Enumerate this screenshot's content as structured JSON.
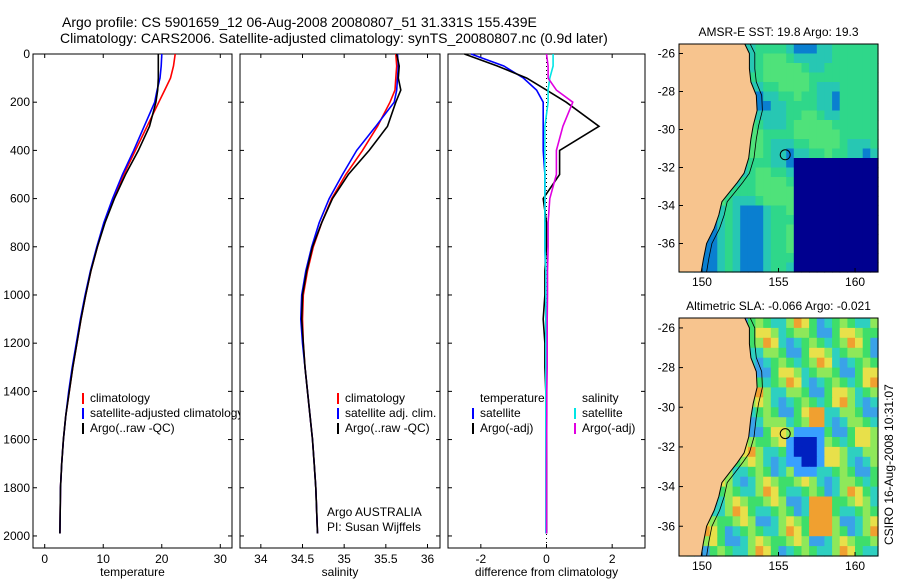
{
  "header": {
    "line1": "Argo profile: CS 5901659_12 06-Aug-2008 20080807_51 31.331S 155.439E",
    "line2": "Climatology: CARS2006. Satellite-adjusted climatology: synTS_20080807.nc (0.9d later)"
  },
  "side_label": "CSIRO 16-Aug-2008 10:31:07",
  "colors": {
    "red": "#ff0000",
    "blue": "#0000ff",
    "black": "#000000",
    "cyan": "#00e5e5",
    "magenta": "#e000e0",
    "land": "#f7c48e",
    "coast": "#000000"
  },
  "chart_data": [
    {
      "type": "line",
      "id": "temperature",
      "xlabel": "temperature",
      "ylabel": "",
      "xlim": [
        -2,
        32
      ],
      "ylim": [
        2050,
        0
      ],
      "xticks": [
        0,
        10,
        20,
        30
      ],
      "yticks": [
        0,
        200,
        400,
        600,
        800,
        1000,
        1200,
        1400,
        1600,
        1800,
        2000
      ],
      "legend": [
        "climatology",
        "satellite-adjusted climatology",
        "Argo(..raw -QC)"
      ],
      "series": [
        {
          "name": "climatology",
          "color": "red",
          "x": [
            22.3,
            22.0,
            21.5,
            20.5,
            19.5,
            17.5,
            15.5,
            13.5,
            11.8,
            10.2,
            9.0,
            7.9,
            7.0,
            6.2,
            5.5,
            4.8,
            4.2,
            3.6,
            3.2,
            2.9,
            2.7,
            2.6
          ],
          "y": [
            0,
            50,
            100,
            150,
            200,
            300,
            400,
            500,
            600,
            700,
            800,
            900,
            1000,
            1100,
            1200,
            1300,
            1400,
            1500,
            1600,
            1700,
            1800,
            1990
          ]
        },
        {
          "name": "satellite-adjusted climatology",
          "color": "blue",
          "x": [
            20.0,
            19.9,
            19.7,
            19.2,
            18.8,
            17.0,
            15.2,
            13.3,
            11.6,
            10.1,
            8.9,
            7.8,
            6.9,
            6.1,
            5.4,
            4.7,
            4.1,
            3.6,
            3.2,
            2.9,
            2.7,
            2.6
          ],
          "y": [
            0,
            50,
            100,
            150,
            200,
            300,
            400,
            500,
            600,
            700,
            800,
            900,
            1000,
            1100,
            1200,
            1300,
            1400,
            1500,
            1600,
            1700,
            1800,
            1990
          ]
        },
        {
          "name": "Argo(..raw -QC)",
          "color": "black",
          "x": [
            19.4,
            19.4,
            19.4,
            19.3,
            19.0,
            17.9,
            16.0,
            13.8,
            11.9,
            10.3,
            9.0,
            7.9,
            7.0,
            6.2,
            5.5,
            4.8,
            4.2,
            3.6,
            3.2,
            2.9,
            2.7,
            2.6
          ],
          "y": [
            0,
            50,
            100,
            150,
            200,
            300,
            400,
            500,
            600,
            700,
            800,
            900,
            1000,
            1100,
            1200,
            1300,
            1400,
            1500,
            1600,
            1700,
            1800,
            1990
          ]
        }
      ]
    },
    {
      "type": "line",
      "id": "salinity",
      "xlabel": "salinity",
      "ylabel": "",
      "xlim": [
        33.75,
        36.15
      ],
      "ylim": [
        2050,
        0
      ],
      "xticks": [
        34,
        34.5,
        35,
        35.5,
        36
      ],
      "yticks": [
        0,
        200,
        400,
        600,
        800,
        1000,
        1200,
        1400,
        1600,
        1800,
        2000
      ],
      "legend": [
        "climatology",
        "satellite adj. clim.",
        "Argo(..raw -QC)"
      ],
      "annotations": [
        "Argo AUSTRALIA",
        "PI: Susan Wijffels"
      ],
      "series": [
        {
          "name": "climatology",
          "color": "red",
          "x": [
            35.62,
            35.63,
            35.62,
            35.61,
            35.55,
            35.4,
            35.22,
            35.02,
            34.85,
            34.73,
            34.63,
            34.56,
            34.51,
            34.5,
            34.51,
            34.53,
            34.56,
            34.59,
            34.62,
            34.64,
            34.66,
            34.68
          ],
          "y": [
            0,
            50,
            100,
            150,
            200,
            300,
            400,
            500,
            600,
            700,
            800,
            900,
            1000,
            1100,
            1200,
            1300,
            1400,
            1500,
            1600,
            1700,
            1800,
            1990
          ]
        },
        {
          "name": "satellite adj. clim.",
          "color": "blue",
          "x": [
            35.64,
            35.65,
            35.64,
            35.63,
            35.6,
            35.38,
            35.15,
            34.98,
            34.82,
            34.7,
            34.61,
            34.54,
            34.49,
            34.48,
            34.5,
            34.53,
            34.56,
            34.59,
            34.62,
            34.64,
            34.66,
            34.68
          ],
          "y": [
            0,
            50,
            100,
            150,
            200,
            300,
            400,
            500,
            600,
            700,
            800,
            900,
            1000,
            1100,
            1200,
            1300,
            1400,
            1500,
            1600,
            1700,
            1800,
            1990
          ]
        },
        {
          "name": "Argo(..raw -QC)",
          "color": "black",
          "x": [
            35.63,
            35.66,
            35.65,
            35.68,
            35.62,
            35.52,
            35.3,
            35.05,
            34.86,
            34.73,
            34.62,
            34.55,
            34.5,
            34.49,
            34.51,
            34.53,
            34.56,
            34.59,
            34.62,
            34.64,
            34.66,
            34.68
          ],
          "y": [
            0,
            50,
            100,
            150,
            200,
            300,
            400,
            500,
            600,
            700,
            800,
            900,
            1000,
            1100,
            1200,
            1300,
            1400,
            1500,
            1600,
            1700,
            1800,
            1990
          ]
        }
      ]
    },
    {
      "type": "line",
      "id": "difference",
      "xlabel": "difference from climatology",
      "ylabel": "",
      "xlim": [
        -3,
        3
      ],
      "ylim": [
        2050,
        0
      ],
      "xticks": [
        -2,
        0,
        2
      ],
      "yticks": [
        0,
        200,
        400,
        600,
        800,
        1000,
        1200,
        1400,
        1600,
        1800,
        2000
      ],
      "legend_left": [
        "temperature",
        "satellite",
        "Argo(-adj)"
      ],
      "legend_right": [
        "salinity",
        "satellite",
        "Argo(-adj)"
      ],
      "series": [
        {
          "name": "temperature satellite",
          "color": "blue",
          "x": [
            -2.3,
            -1.3,
            -0.7,
            -0.3,
            -0.1,
            -0.1,
            -0.1,
            -0.05,
            -0.05,
            -0.05,
            -0.05,
            -0.03,
            -0.02,
            -0.02,
            -0.02,
            -0.01,
            -0.01,
            0,
            0,
            0
          ],
          "y": [
            0,
            50,
            100,
            150,
            200,
            300,
            400,
            500,
            600,
            700,
            800,
            900,
            1000,
            1100,
            1200,
            1300,
            1400,
            1500,
            1700,
            1990
          ]
        },
        {
          "name": "temperature Argo(-adj)",
          "color": "black",
          "x": [
            -2.5,
            -1.5,
            -0.6,
            0.0,
            0.6,
            1.6,
            0.4,
            0.4,
            -0.1,
            0.0,
            0.0,
            -0.05,
            -0.05,
            -0.1,
            -0.05,
            -0.05,
            -0.02,
            0,
            0,
            0
          ],
          "y": [
            0,
            50,
            100,
            150,
            200,
            300,
            400,
            500,
            600,
            700,
            800,
            900,
            1000,
            1100,
            1200,
            1300,
            1400,
            1500,
            1700,
            1990
          ]
        },
        {
          "name": "salinity satellite",
          "color": "cyan",
          "x": [
            0.2,
            0.2,
            0.1,
            0.05,
            0.05,
            -0.05,
            -0.05,
            -0.05,
            -0.05,
            -0.05,
            -0.05,
            -0.02,
            -0.02,
            -0.02,
            -0.02,
            -0.02,
            -0.02,
            -0.02,
            -0.02,
            -0.02
          ],
          "y": [
            0,
            50,
            100,
            150,
            200,
            300,
            400,
            500,
            600,
            700,
            800,
            900,
            1000,
            1100,
            1200,
            1300,
            1400,
            1500,
            1700,
            1990
          ]
        },
        {
          "name": "salinity Argo(-adj)",
          "color": "magenta",
          "x": [
            0.0,
            0.05,
            0.05,
            0.3,
            0.8,
            0.5,
            0.3,
            0.3,
            0.1,
            0.05,
            0.05,
            0.03,
            0.03,
            0.02,
            0.02,
            0.02,
            0.01,
            0.01,
            0,
            0
          ],
          "y": [
            0,
            50,
            100,
            150,
            200,
            300,
            400,
            500,
            600,
            700,
            800,
            900,
            1000,
            1100,
            1200,
            1300,
            1400,
            1500,
            1700,
            1990
          ]
        }
      ]
    },
    {
      "type": "heatmap",
      "id": "sst-map",
      "title": "AMSR-E SST: 19.8 Argo: 19.3",
      "xlim": [
        148.5,
        161.5
      ],
      "ylim": [
        -37.5,
        -25.5
      ],
      "xticks": [
        150,
        155,
        160
      ],
      "yticks": [
        -26,
        -28,
        -30,
        -32,
        -34,
        -36
      ],
      "float_position": [
        155.44,
        -31.33
      ]
    },
    {
      "type": "heatmap",
      "id": "sla-map",
      "title": "Altimetric SLA: -0.066 Argo: -0.021",
      "xlim": [
        148.5,
        161.5
      ],
      "ylim": [
        -37.5,
        -25.5
      ],
      "xticks": [
        150,
        155,
        160
      ],
      "yticks": [
        -26,
        -28,
        -30,
        -32,
        -34,
        -36
      ],
      "float_position": [
        155.44,
        -31.33
      ]
    }
  ]
}
